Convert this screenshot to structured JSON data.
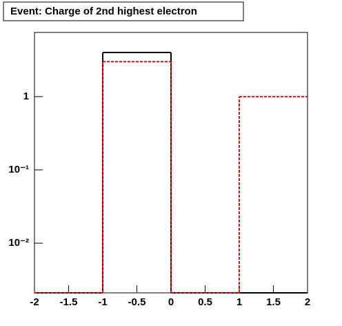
{
  "chart_data": {
    "type": "step-histogram",
    "title": "Event: Charge of 2nd highest electron",
    "bins": [
      -2,
      -1,
      0,
      1,
      2
    ],
    "series": [
      {
        "color": "#000000",
        "dash": false,
        "values": [
          0,
          4,
          0,
          0
        ]
      },
      {
        "color": "#ff0000",
        "dash": true,
        "values": [
          0,
          3,
          0,
          1
        ]
      }
    ],
    "xlim": [
      -2,
      2
    ],
    "xticks": [
      -2,
      -1.5,
      -1,
      -0.5,
      0,
      0.5,
      1,
      1.5,
      2
    ],
    "ylim": [
      0.0021,
      7.5
    ],
    "log_y": true,
    "yticks": [
      {
        "value": 0.01,
        "label": "10⁻²"
      },
      {
        "value": 0.1,
        "label": "10⁻¹"
      },
      1
    ]
  }
}
